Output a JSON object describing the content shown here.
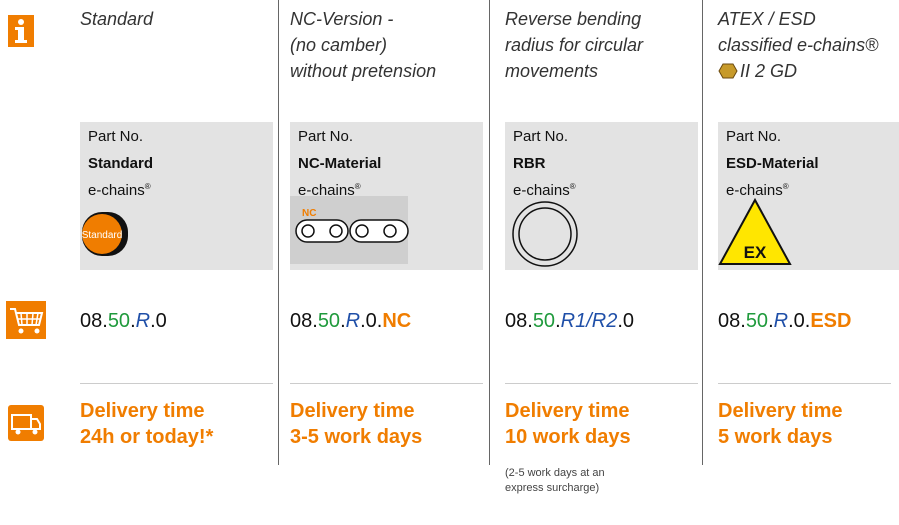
{
  "columns": [
    {
      "title": [
        "Standard"
      ],
      "part_label": "Part No.",
      "part_name": "Standard",
      "chains": "e-chains",
      "reg": "®",
      "badge": "Standard",
      "part_number": [
        "08.",
        "50",
        ".",
        "R",
        ".0"
      ],
      "delivery": [
        "Delivery time",
        "24h or today!*"
      ]
    },
    {
      "title": [
        "NC-Version -",
        "(no camber)",
        "without pretension"
      ],
      "part_label": "Part No.",
      "part_name": "NC-Material",
      "chains": "e-chains",
      "reg": "®",
      "badge": "NC",
      "part_number": [
        "08.",
        "50",
        ".",
        "R",
        ".0.",
        "NC"
      ],
      "delivery": [
        "Delivery time",
        "3-5 work days"
      ]
    },
    {
      "title": [
        "Reverse bending",
        "radius for circular",
        "movements"
      ],
      "part_label": "Part No.",
      "part_name": "RBR",
      "chains": "e-chains",
      "reg": "®",
      "part_number": [
        "08.",
        "50",
        ".",
        "R1/R2",
        ".0"
      ],
      "delivery": [
        "Delivery time",
        "10 work days"
      ],
      "note": [
        "(2-5 work days at an",
        "express surcharge)"
      ]
    },
    {
      "title": [
        "ATEX / ESD",
        "classified e-chains®",
        "II 2 GD"
      ],
      "part_label": "Part No.",
      "part_name": "ESD-Material",
      "chains": "e-chains",
      "reg": "®",
      "badge": "EX",
      "part_number": [
        "08.",
        "50",
        ".",
        "R",
        ".0.",
        "ESD"
      ],
      "delivery": [
        "Delivery time",
        "5 work days"
      ]
    }
  ]
}
